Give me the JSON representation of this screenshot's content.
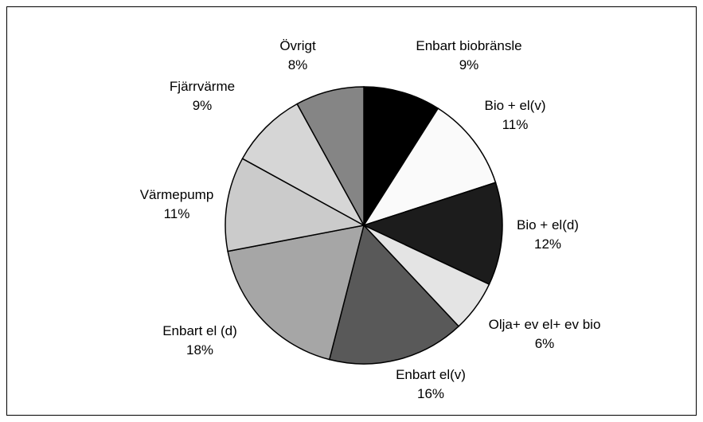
{
  "chart_data": {
    "type": "pie",
    "categories": [
      "Enbart biobränsle",
      "Bio + el(v)",
      "Bio + el(d)",
      "Olja+ ev el+ ev bio",
      "Enbart el(v)",
      "Enbart el (d)",
      "Värmepump",
      "Fjärrvärme",
      "Övrigt"
    ],
    "values": [
      9,
      11,
      12,
      6,
      16,
      18,
      11,
      9,
      8
    ],
    "value_labels": [
      "9%",
      "11%",
      "12%",
      "6%",
      "16%",
      "18%",
      "11%",
      "9%",
      "8%"
    ],
    "colors": [
      "#000000",
      "#fafafa",
      "#1c1c1c",
      "#e4e4e4",
      "#595959",
      "#a6a6a6",
      "#cbcbcb",
      "#d6d6d6",
      "#858585"
    ]
  }
}
